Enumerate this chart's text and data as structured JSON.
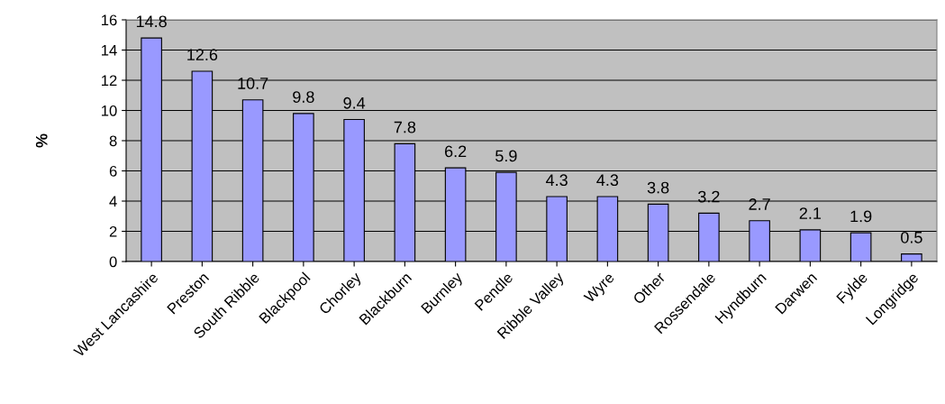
{
  "chart_data": {
    "type": "bar",
    "ylabel": "%",
    "categories": [
      "West Lancashire",
      "Preston",
      "South Ribble",
      "Blackpool",
      "Chorley",
      "Blackburn",
      "Burnley",
      "Pendle",
      "Ribble Valley",
      "Wyre",
      "Other",
      "Rossendale",
      "Hyndburn",
      "Darwen",
      "Fylde",
      "Longridge"
    ],
    "values": [
      14.8,
      12.6,
      10.7,
      9.8,
      9.4,
      7.8,
      6.2,
      5.9,
      4.3,
      4.3,
      3.8,
      3.2,
      2.7,
      2.1,
      1.9,
      0.5
    ],
    "color": "#9999ff",
    "ylim": [
      0,
      16
    ],
    "yticks": [
      0,
      2,
      4,
      6,
      8,
      10,
      12,
      14,
      16
    ],
    "grid": "y",
    "data_labels": true
  }
}
